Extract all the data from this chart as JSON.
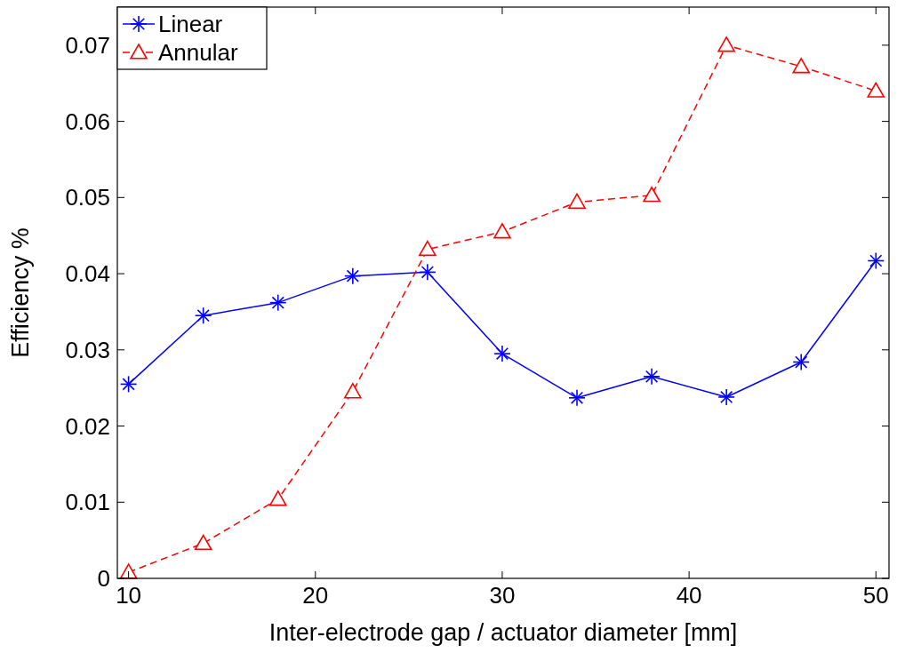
{
  "chart_data": {
    "type": "line",
    "xlabel": "Inter-electrode gap / actuator diameter [mm]",
    "ylabel": "Efficiency %",
    "x": [
      10,
      14,
      18,
      22,
      26,
      30,
      34,
      38,
      42,
      46,
      50
    ],
    "xlim": [
      9.4,
      50.7
    ],
    "xticks": [
      10,
      20,
      30,
      40,
      50
    ],
    "ylim": [
      0,
      0.075
    ],
    "yticks": [
      0,
      0.01,
      0.02,
      0.03,
      0.04,
      0.05,
      0.06,
      0.07
    ],
    "legend": "top left",
    "grid": false,
    "series": [
      {
        "name": "Linear",
        "color": "#0000ff",
        "marker": "cross",
        "line_style": "solid",
        "values": [
          0.0255,
          0.0345,
          0.0362,
          0.0397,
          0.0402,
          0.0295,
          0.0237,
          0.0265,
          0.0238,
          0.0284,
          0.0417
        ]
      },
      {
        "name": "Annular",
        "color": "#ff0000",
        "marker": "triangle",
        "line_style": "dashed",
        "values": [
          0.0008,
          0.0046,
          0.0104,
          0.0245,
          0.0432,
          0.0455,
          0.0494,
          0.0503,
          0.07,
          0.0672,
          0.064
        ]
      }
    ]
  }
}
